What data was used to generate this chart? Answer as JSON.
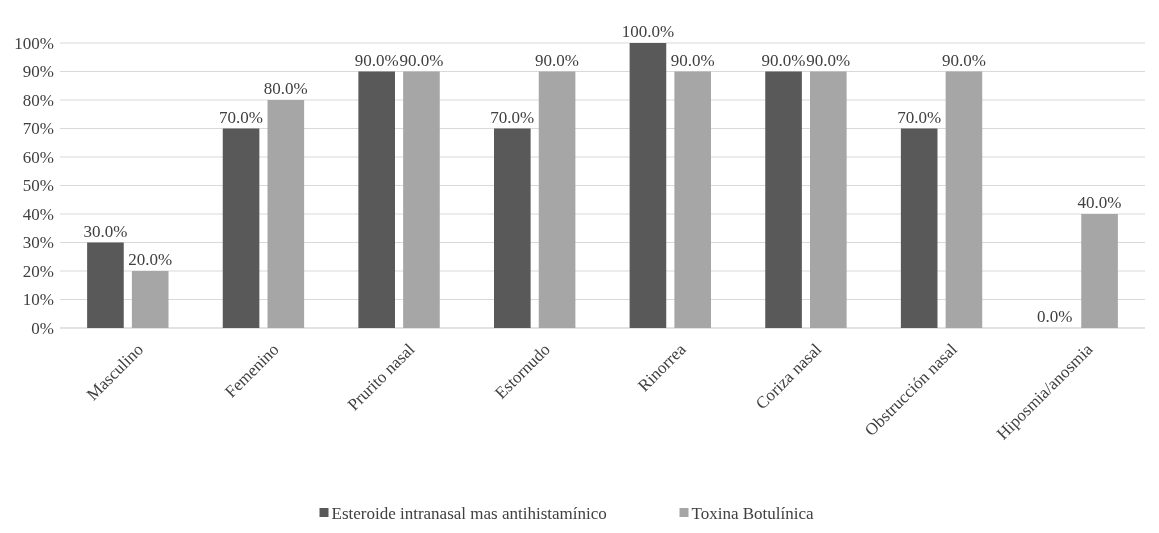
{
  "chart_data": {
    "type": "bar",
    "categories": [
      "Masculino",
      "Femenino",
      "Prurito nasal",
      "Estornudo",
      "Rinorrea",
      "Coriza nasal",
      "Obstrucción nasal",
      "Hiposmia/anosmia"
    ],
    "series": [
      {
        "name": "Esteroide intranasal mas antihistamínico",
        "color": "#595959",
        "values": [
          30,
          70,
          90,
          70,
          100,
          90,
          70,
          0
        ],
        "value_labels": [
          "30.0%",
          "70.0%",
          "90.0%",
          "70.0%",
          "100.0%",
          "90.0%",
          "70.0%",
          "0.0%"
        ]
      },
      {
        "name": "Toxina Botulínica",
        "color": "#a6a6a6",
        "values": [
          20,
          80,
          90,
          90,
          90,
          90,
          90,
          40
        ],
        "value_labels": [
          "20.0%",
          "80.0%",
          "90.0%",
          "90.0%",
          "90.0%",
          "90.0%",
          "90.0%",
          "40.0%"
        ]
      }
    ],
    "ylim": [
      0,
      100
    ],
    "yticks": [
      {
        "value": 0,
        "label": "0%"
      },
      {
        "value": 10,
        "label": "10%"
      },
      {
        "value": 20,
        "label": "20%"
      },
      {
        "value": 30,
        "label": "30%"
      },
      {
        "value": 40,
        "label": "40%"
      },
      {
        "value": 50,
        "label": "50%"
      },
      {
        "value": 60,
        "label": "60%"
      },
      {
        "value": 70,
        "label": "70%"
      },
      {
        "value": 80,
        "label": "80%"
      },
      {
        "value": 90,
        "label": "90%"
      },
      {
        "value": 100,
        "label": "100%"
      }
    ],
    "grid": "y",
    "legend": "bottom"
  }
}
